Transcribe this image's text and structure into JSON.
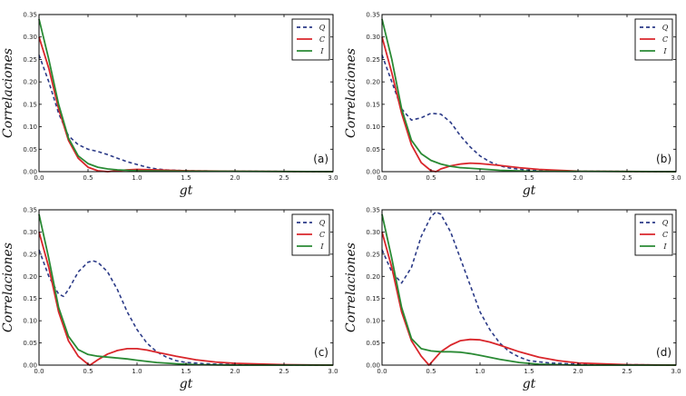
{
  "colors": {
    "Q": "#2b3a87",
    "C": "#d9262b",
    "I": "#2a8a34"
  },
  "chart_data": [
    {
      "type": "line",
      "panel_label": "(a)",
      "xlabel": "gt",
      "ylabel": "Correlaciones",
      "xlim": [
        0,
        3
      ],
      "ylim": [
        0,
        0.35
      ],
      "xticks": [
        "0.0",
        "0.5",
        "1.0",
        "1.5",
        "2.0",
        "2.5",
        "3.0"
      ],
      "yticks": [
        "0.00",
        "0.05",
        "0.10",
        "0.15",
        "0.20",
        "0.25",
        "0.30",
        "0.35"
      ],
      "legend": {
        "position": "top-right",
        "entries": [
          "Q",
          "C",
          "I"
        ]
      },
      "series": [
        {
          "name": "Q",
          "style": "dashed",
          "x": [
            0,
            0.1,
            0.2,
            0.3,
            0.4,
            0.5,
            0.6,
            0.7,
            0.8,
            0.9,
            1.0,
            1.1,
            1.2,
            1.3,
            1.4,
            1.5,
            2.0,
            3.0
          ],
          "y": [
            0.26,
            0.2,
            0.13,
            0.08,
            0.06,
            0.05,
            0.045,
            0.038,
            0.03,
            0.022,
            0.016,
            0.01,
            0.006,
            0.004,
            0.003,
            0.002,
            0.001,
            0
          ]
        },
        {
          "name": "C",
          "style": "solid",
          "x": [
            0,
            0.1,
            0.2,
            0.3,
            0.4,
            0.5,
            0.6,
            0.7,
            0.8,
            0.9,
            1.0,
            1.2,
            1.5,
            2.0,
            3.0
          ],
          "y": [
            0.3,
            0.23,
            0.14,
            0.07,
            0.03,
            0.01,
            0.002,
            0,
            0.002,
            0.004,
            0.005,
            0.004,
            0.002,
            0.001,
            0
          ]
        },
        {
          "name": "I",
          "style": "solid",
          "x": [
            0,
            0.1,
            0.2,
            0.3,
            0.4,
            0.5,
            0.6,
            0.7,
            0.8,
            1.0,
            1.5,
            3.0
          ],
          "y": [
            0.34,
            0.25,
            0.15,
            0.075,
            0.035,
            0.018,
            0.01,
            0.006,
            0.004,
            0.002,
            0.001,
            0
          ]
        }
      ]
    },
    {
      "type": "line",
      "panel_label": "(b)",
      "xlabel": "gt",
      "ylabel": "Correlaciones",
      "xlim": [
        0,
        3
      ],
      "ylim": [
        0,
        0.35
      ],
      "xticks": [
        "0.0",
        "0.5",
        "1.0",
        "1.5",
        "2.0",
        "2.5",
        "3.0"
      ],
      "yticks": [
        "0.00",
        "0.05",
        "0.10",
        "0.15",
        "0.20",
        "0.25",
        "0.30",
        "0.35"
      ],
      "legend": {
        "position": "top-right",
        "entries": [
          "Q",
          "C",
          "I"
        ]
      },
      "series": [
        {
          "name": "Q",
          "style": "dashed",
          "x": [
            0,
            0.1,
            0.2,
            0.3,
            0.4,
            0.5,
            0.6,
            0.7,
            0.8,
            0.9,
            1.0,
            1.1,
            1.2,
            1.3,
            1.5,
            2.0,
            3.0
          ],
          "y": [
            0.26,
            0.2,
            0.14,
            0.115,
            0.12,
            0.13,
            0.128,
            0.11,
            0.08,
            0.055,
            0.035,
            0.022,
            0.013,
            0.008,
            0.003,
            0.001,
            0
          ]
        },
        {
          "name": "C",
          "style": "solid",
          "x": [
            0,
            0.1,
            0.2,
            0.3,
            0.4,
            0.5,
            0.55,
            0.6,
            0.7,
            0.8,
            0.9,
            1.0,
            1.2,
            1.4,
            1.6,
            2.0,
            3.0
          ],
          "y": [
            0.3,
            0.22,
            0.13,
            0.06,
            0.02,
            0.002,
            0,
            0.006,
            0.013,
            0.017,
            0.019,
            0.018,
            0.014,
            0.009,
            0.005,
            0.001,
            0
          ]
        },
        {
          "name": "I",
          "style": "solid",
          "x": [
            0,
            0.1,
            0.2,
            0.3,
            0.4,
            0.5,
            0.6,
            0.7,
            0.8,
            1.0,
            1.2,
            1.5,
            3.0
          ],
          "y": [
            0.34,
            0.25,
            0.14,
            0.07,
            0.04,
            0.025,
            0.017,
            0.012,
            0.009,
            0.006,
            0.003,
            0.001,
            0
          ]
        }
      ]
    },
    {
      "type": "line",
      "panel_label": "(c)",
      "xlabel": "gt",
      "ylabel": "Correlaciones",
      "xlim": [
        0,
        3
      ],
      "ylim": [
        0,
        0.35
      ],
      "xticks": [
        "0.0",
        "0.5",
        "1.0",
        "1.5",
        "2.0",
        "2.5",
        "3.0"
      ],
      "yticks": [
        "0.00",
        "0.05",
        "0.10",
        "0.15",
        "0.20",
        "0.25",
        "0.30",
        "0.35"
      ],
      "legend": {
        "position": "top-right",
        "entries": [
          "Q",
          "C",
          "I"
        ]
      },
      "series": [
        {
          "name": "Q",
          "style": "dashed",
          "x": [
            0,
            0.1,
            0.2,
            0.25,
            0.3,
            0.4,
            0.5,
            0.55,
            0.6,
            0.7,
            0.8,
            0.9,
            1.0,
            1.1,
            1.2,
            1.3,
            1.4,
            1.5,
            1.7,
            2.0,
            3.0
          ],
          "y": [
            0.26,
            0.2,
            0.16,
            0.155,
            0.17,
            0.21,
            0.232,
            0.235,
            0.232,
            0.21,
            0.17,
            0.12,
            0.08,
            0.05,
            0.03,
            0.018,
            0.01,
            0.006,
            0.003,
            0.001,
            0
          ]
        },
        {
          "name": "C",
          "style": "solid",
          "x": [
            0,
            0.1,
            0.2,
            0.3,
            0.4,
            0.5,
            0.52,
            0.6,
            0.7,
            0.8,
            0.9,
            1.0,
            1.1,
            1.2,
            1.4,
            1.6,
            1.8,
            2.0,
            2.5,
            3.0
          ],
          "y": [
            0.3,
            0.22,
            0.12,
            0.055,
            0.02,
            0.002,
            0,
            0.012,
            0.025,
            0.033,
            0.037,
            0.037,
            0.034,
            0.029,
            0.02,
            0.012,
            0.007,
            0.004,
            0.001,
            0
          ]
        },
        {
          "name": "I",
          "style": "solid",
          "x": [
            0,
            0.1,
            0.2,
            0.3,
            0.4,
            0.5,
            0.6,
            0.7,
            0.8,
            0.9,
            1.0,
            1.2,
            1.4,
            1.6,
            2.0,
            3.0
          ],
          "y": [
            0.34,
            0.24,
            0.13,
            0.065,
            0.035,
            0.024,
            0.02,
            0.018,
            0.016,
            0.014,
            0.011,
            0.006,
            0.003,
            0.001,
            0,
            0
          ]
        }
      ]
    },
    {
      "type": "line",
      "panel_label": "(d)",
      "xlabel": "gt",
      "ylabel": "Correlaciones",
      "xlim": [
        0,
        3
      ],
      "ylim": [
        0,
        0.35
      ],
      "xticks": [
        "0.0",
        "0.5",
        "1.0",
        "1.5",
        "2.0",
        "2.5",
        "3.0"
      ],
      "yticks": [
        "0.00",
        "0.05",
        "0.10",
        "0.15",
        "0.20",
        "0.25",
        "0.30",
        "0.35"
      ],
      "legend": {
        "position": "top-right",
        "entries": [
          "Q",
          "C",
          "I"
        ]
      },
      "series": [
        {
          "name": "Q",
          "style": "dashed",
          "x": [
            0,
            0.1,
            0.2,
            0.3,
            0.4,
            0.5,
            0.55,
            0.6,
            0.7,
            0.8,
            0.9,
            1.0,
            1.1,
            1.2,
            1.3,
            1.4,
            1.5,
            1.7,
            2.0,
            3.0
          ],
          "y": [
            0.26,
            0.21,
            0.185,
            0.22,
            0.29,
            0.335,
            0.345,
            0.34,
            0.3,
            0.24,
            0.18,
            0.12,
            0.08,
            0.05,
            0.03,
            0.018,
            0.01,
            0.005,
            0.002,
            0
          ]
        },
        {
          "name": "C",
          "style": "solid",
          "x": [
            0,
            0.1,
            0.2,
            0.3,
            0.4,
            0.48,
            0.6,
            0.7,
            0.8,
            0.9,
            1.0,
            1.1,
            1.2,
            1.4,
            1.6,
            1.8,
            2.0,
            2.5,
            3.0
          ],
          "y": [
            0.3,
            0.22,
            0.12,
            0.055,
            0.02,
            0,
            0.03,
            0.045,
            0.055,
            0.058,
            0.057,
            0.052,
            0.045,
            0.03,
            0.018,
            0.01,
            0.005,
            0.001,
            0
          ]
        },
        {
          "name": "I",
          "style": "solid",
          "x": [
            0,
            0.1,
            0.2,
            0.3,
            0.4,
            0.5,
            0.6,
            0.7,
            0.8,
            0.9,
            1.0,
            1.2,
            1.4,
            1.6,
            2.0,
            3.0
          ],
          "y": [
            0.34,
            0.24,
            0.13,
            0.06,
            0.037,
            0.032,
            0.03,
            0.03,
            0.029,
            0.026,
            0.022,
            0.013,
            0.006,
            0.002,
            0,
            0
          ]
        }
      ]
    }
  ]
}
